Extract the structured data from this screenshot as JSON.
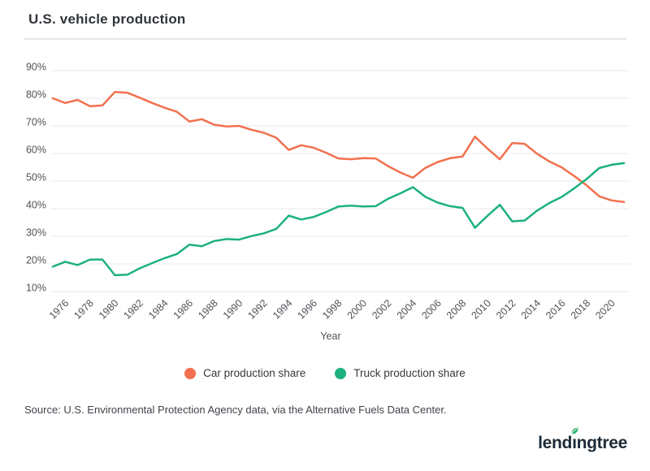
{
  "header": {
    "title": "U.S. vehicle production"
  },
  "chart_data": {
    "type": "line",
    "title": "U.S. vehicle production",
    "xlabel": "Year",
    "ylabel": "",
    "grid": true,
    "legend_position": "bottom",
    "ylim": [
      10,
      90
    ],
    "y_tick_values": [
      90,
      80,
      70,
      60,
      50,
      40,
      30,
      20,
      10
    ],
    "y_tick_labels": [
      "90%",
      "80%",
      "70%",
      "60%",
      "50%",
      "40%",
      "30%",
      "20%",
      "10%"
    ],
    "x_tick_years": [
      1976,
      1978,
      1980,
      1982,
      1984,
      1986,
      1988,
      1990,
      1992,
      1994,
      1996,
      1998,
      2000,
      2002,
      2004,
      2006,
      2008,
      2010,
      2012,
      2014,
      2016,
      2018,
      2020
    ],
    "x": [
      1975,
      1976,
      1977,
      1978,
      1979,
      1980,
      1981,
      1982,
      1983,
      1984,
      1985,
      1986,
      1987,
      1988,
      1989,
      1990,
      1991,
      1992,
      1993,
      1994,
      1995,
      1996,
      1997,
      1998,
      1999,
      2000,
      2001,
      2002,
      2003,
      2004,
      2005,
      2006,
      2007,
      2008,
      2009,
      2010,
      2011,
      2012,
      2013,
      2014,
      2015,
      2016,
      2017,
      2018,
      2019,
      2020,
      2021
    ],
    "series": [
      {
        "name": "Car production share",
        "color": "#f2704e",
        "values": [
          80.0,
          78.3,
          79.4,
          77.1,
          77.4,
          82.3,
          82.0,
          80.2,
          78.3,
          76.6,
          75.1,
          71.6,
          72.4,
          70.4,
          69.8,
          70.0,
          68.6,
          67.5,
          65.7,
          61.3,
          63.0,
          62.1,
          60.3,
          58.2,
          57.9,
          58.3,
          58.2,
          55.4,
          53.1,
          51.2,
          54.8,
          56.9,
          58.3,
          58.9,
          66.1,
          61.8,
          57.9,
          63.8,
          63.5,
          59.9,
          57.1,
          54.9,
          51.8,
          48.4,
          44.5,
          43.0,
          42.4
        ]
      },
      {
        "name": "Truck production share",
        "color": "#1cb17e",
        "values": [
          19.0,
          20.8,
          19.6,
          21.6,
          21.6,
          15.9,
          16.1,
          18.4,
          20.3,
          22.1,
          23.6,
          27.0,
          26.4,
          28.3,
          29.0,
          28.8,
          30.1,
          31.1,
          32.7,
          37.5,
          36.1,
          37.0,
          38.8,
          40.8,
          41.1,
          40.8,
          40.9,
          43.6,
          45.6,
          47.8,
          44.3,
          42.2,
          40.9,
          40.3,
          33.1,
          37.4,
          41.4,
          35.4,
          35.7,
          39.3,
          42.1,
          44.3,
          47.4,
          50.8,
          54.7,
          55.9,
          56.5
        ]
      }
    ]
  },
  "legend": {
    "items": [
      {
        "label": "Car production share",
        "color": "#f2704e"
      },
      {
        "label": "Truck production share",
        "color": "#1cb17e"
      }
    ]
  },
  "source": {
    "text": "Source: U.S. Environmental Protection Agency data, via the Alternative Fuels Data Center."
  },
  "logo": {
    "text_start": "lend",
    "text_end": "ngtree",
    "dotless_i": "ı",
    "text_color": "#1c2b37",
    "leaf_color": "#27b26e"
  }
}
